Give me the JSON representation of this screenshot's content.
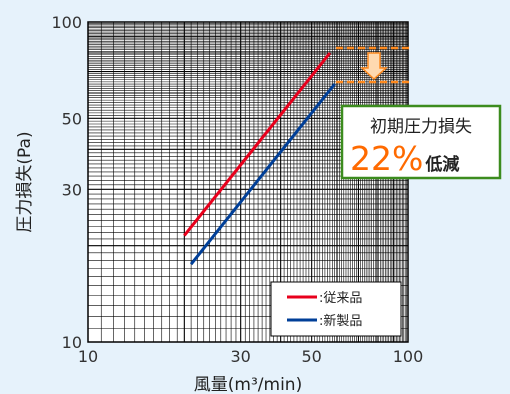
{
  "chart_data": {
    "type": "line",
    "x_scale": "log",
    "y_scale": "log",
    "xlim": [
      10,
      100
    ],
    "ylim": [
      10,
      100
    ],
    "xlabel": "風量(m³/min)",
    "ylabel": "圧力損失(Pa)",
    "x_ticks": [
      "10",
      "30",
      "50",
      "100"
    ],
    "x_tick_values": [
      10,
      30,
      50,
      100
    ],
    "y_ticks": [
      "10",
      "30",
      "50",
      "100"
    ],
    "y_tick_values": [
      10,
      30,
      50,
      100
    ],
    "grid": true,
    "legend_position": "bottom-right",
    "series": [
      {
        "name": ":従来品",
        "color": "#e8001c",
        "x": [
          20,
          57
        ],
        "y": [
          21.5,
          80
        ]
      },
      {
        "name": ":新製品",
        "color": "#003f98",
        "x": [
          21,
          59
        ],
        "y": [
          17.5,
          64
        ]
      }
    ],
    "annotation": {
      "title": "初期圧力損失",
      "value": "22%",
      "suffix": "低減",
      "arrow_color": "#ff8a1e",
      "box_color": "#3c8c1e"
    }
  }
}
